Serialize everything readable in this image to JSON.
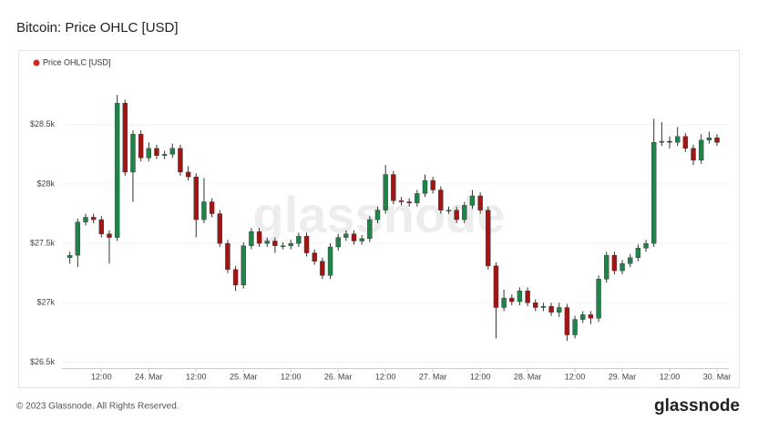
{
  "chart_data": {
    "type": "candlestick",
    "title": "Bitcoin: Price OHLC [USD]",
    "legend": "Price OHLC [USD]",
    "legend_color": "#d62728",
    "watermark": "glassnode",
    "footer": "© 2023 Glassnode. All Rights Reserved.",
    "logo": "glassnode",
    "up_color": "#1e8449",
    "down_color": "#a31515",
    "grid": true,
    "xlim": [
      2,
      171
    ],
    "ylim": [
      26450,
      28920
    ],
    "xticks": [
      {
        "value": 12,
        "label": "12:00"
      },
      {
        "value": 24,
        "label": "24. Mar"
      },
      {
        "value": 36,
        "label": "12:00"
      },
      {
        "value": 48,
        "label": "25. Mar"
      },
      {
        "value": 60,
        "label": "12:00"
      },
      {
        "value": 72,
        "label": "26. Mar"
      },
      {
        "value": 84,
        "label": "12:00"
      },
      {
        "value": 96,
        "label": "27. Mar"
      },
      {
        "value": 108,
        "label": "12:00"
      },
      {
        "value": 120,
        "label": "28. Mar"
      },
      {
        "value": 132,
        "label": "12:00"
      },
      {
        "value": 144,
        "label": "29. Mar"
      },
      {
        "value": 156,
        "label": "12:00"
      },
      {
        "value": 168,
        "label": "30. Mar"
      }
    ],
    "yticks": [
      {
        "value": 26500,
        "label": "$26.5k"
      },
      {
        "value": 27000,
        "label": "$27k"
      },
      {
        "value": 27500,
        "label": "$27.5k"
      },
      {
        "value": 28000,
        "label": "$28k"
      },
      {
        "value": 28500,
        "label": "$28.5k"
      }
    ],
    "x": [
      4,
      6,
      8,
      10,
      12,
      14,
      16,
      18,
      20,
      22,
      24,
      26,
      28,
      30,
      32,
      34,
      36,
      38,
      40,
      42,
      44,
      46,
      48,
      50,
      52,
      54,
      56,
      58,
      60,
      62,
      64,
      66,
      68,
      70,
      72,
      74,
      76,
      78,
      80,
      82,
      84,
      86,
      88,
      90,
      92,
      94,
      96,
      98,
      100,
      102,
      104,
      106,
      108,
      110,
      112,
      114,
      116,
      118,
      120,
      122,
      124,
      126,
      128,
      130,
      132,
      134,
      136,
      138,
      140,
      142,
      144,
      146,
      148,
      150,
      152,
      154,
      156,
      158,
      160,
      162,
      164,
      166,
      168
    ],
    "open": [
      27380,
      27400,
      27680,
      27720,
      27700,
      27580,
      27550,
      28680,
      28100,
      28420,
      28220,
      28300,
      28240,
      28250,
      28300,
      28100,
      28060,
      27700,
      27850,
      27750,
      27500,
      27280,
      27150,
      27480,
      27600,
      27500,
      27520,
      27480,
      27480,
      27500,
      27560,
      27420,
      27350,
      27230,
      27470,
      27550,
      27580,
      27520,
      27540,
      27700,
      27780,
      28080,
      27860,
      27850,
      27840,
      27920,
      28030,
      27950,
      27780,
      27780,
      27700,
      27820,
      27900,
      27780,
      27310,
      26960,
      27040,
      27010,
      27100,
      27000,
      26960,
      26970,
      26920,
      26960,
      26730,
      26860,
      26900,
      26870,
      27200,
      27400,
      27270,
      27330,
      27380,
      27460,
      27500,
      28350,
      28360,
      28350,
      28400,
      28300,
      28200,
      28370,
      28390
    ],
    "high": [
      27430,
      27710,
      27750,
      27750,
      27730,
      27610,
      28750,
      28710,
      28450,
      28450,
      28350,
      28330,
      28280,
      28340,
      28330,
      28150,
      28090,
      28050,
      27880,
      27780,
      27530,
      27310,
      27510,
      27630,
      27630,
      27550,
      27550,
      27510,
      27530,
      27590,
      27590,
      27450,
      27380,
      27500,
      27580,
      27610,
      27610,
      27570,
      27730,
      27810,
      28160,
      28110,
      27890,
      27880,
      27950,
      28080,
      28060,
      27980,
      27810,
      27810,
      27850,
      27950,
      27930,
      27810,
      27340,
      27110,
      27070,
      27130,
      27130,
      27030,
      27000,
      27000,
      27000,
      26990,
      26890,
      26930,
      26930,
      27230,
      27430,
      27430,
      27360,
      27410,
      27490,
      27530,
      28550,
      28520,
      28400,
      28480,
      28430,
      28330,
      28420,
      28440,
      28420
    ],
    "low": [
      27330,
      27300,
      27650,
      27670,
      27550,
      27330,
      27520,
      28070,
      27850,
      28190,
      28190,
      28210,
      28210,
      28220,
      28070,
      28030,
      27550,
      27670,
      27720,
      27470,
      27250,
      27100,
      27120,
      27450,
      27470,
      27470,
      27420,
      27450,
      27450,
      27470,
      27390,
      27320,
      27200,
      27200,
      27440,
      27520,
      27490,
      27490,
      27510,
      27670,
      27750,
      27830,
      27820,
      27810,
      27810,
      27890,
      27920,
      27750,
      27750,
      27670,
      27670,
      27790,
      27750,
      27280,
      26700,
      26930,
      26980,
      26980,
      26970,
      26930,
      26930,
      26890,
      26880,
      26680,
      26700,
      26830,
      26820,
      26840,
      27170,
      27240,
      27240,
      27300,
      27350,
      27430,
      27470,
      28320,
      28300,
      28320,
      28270,
      28160,
      28170,
      28340,
      28320
    ],
    "close": [
      27400,
      27680,
      27720,
      27700,
      27580,
      27550,
      28680,
      28100,
      28420,
      28220,
      28300,
      28240,
      28250,
      28300,
      28100,
      28060,
      27700,
      27850,
      27750,
      27500,
      27280,
      27150,
      27480,
      27600,
      27500,
      27520,
      27480,
      27480,
      27500,
      27560,
      27420,
      27350,
      27230,
      27470,
      27550,
      27580,
      27520,
      27540,
      27700,
      27780,
      28080,
      27860,
      27850,
      27840,
      27920,
      28030,
      27950,
      27780,
      27780,
      27700,
      27820,
      27900,
      27780,
      27310,
      26960,
      27040,
      27010,
      27100,
      27000,
      26960,
      26970,
      26920,
      26960,
      26730,
      26860,
      26900,
      26870,
      27200,
      27400,
      27270,
      27330,
      27380,
      27460,
      27500,
      28350,
      28360,
      28350,
      28400,
      28300,
      28200,
      28370,
      28390,
      28350
    ]
  }
}
